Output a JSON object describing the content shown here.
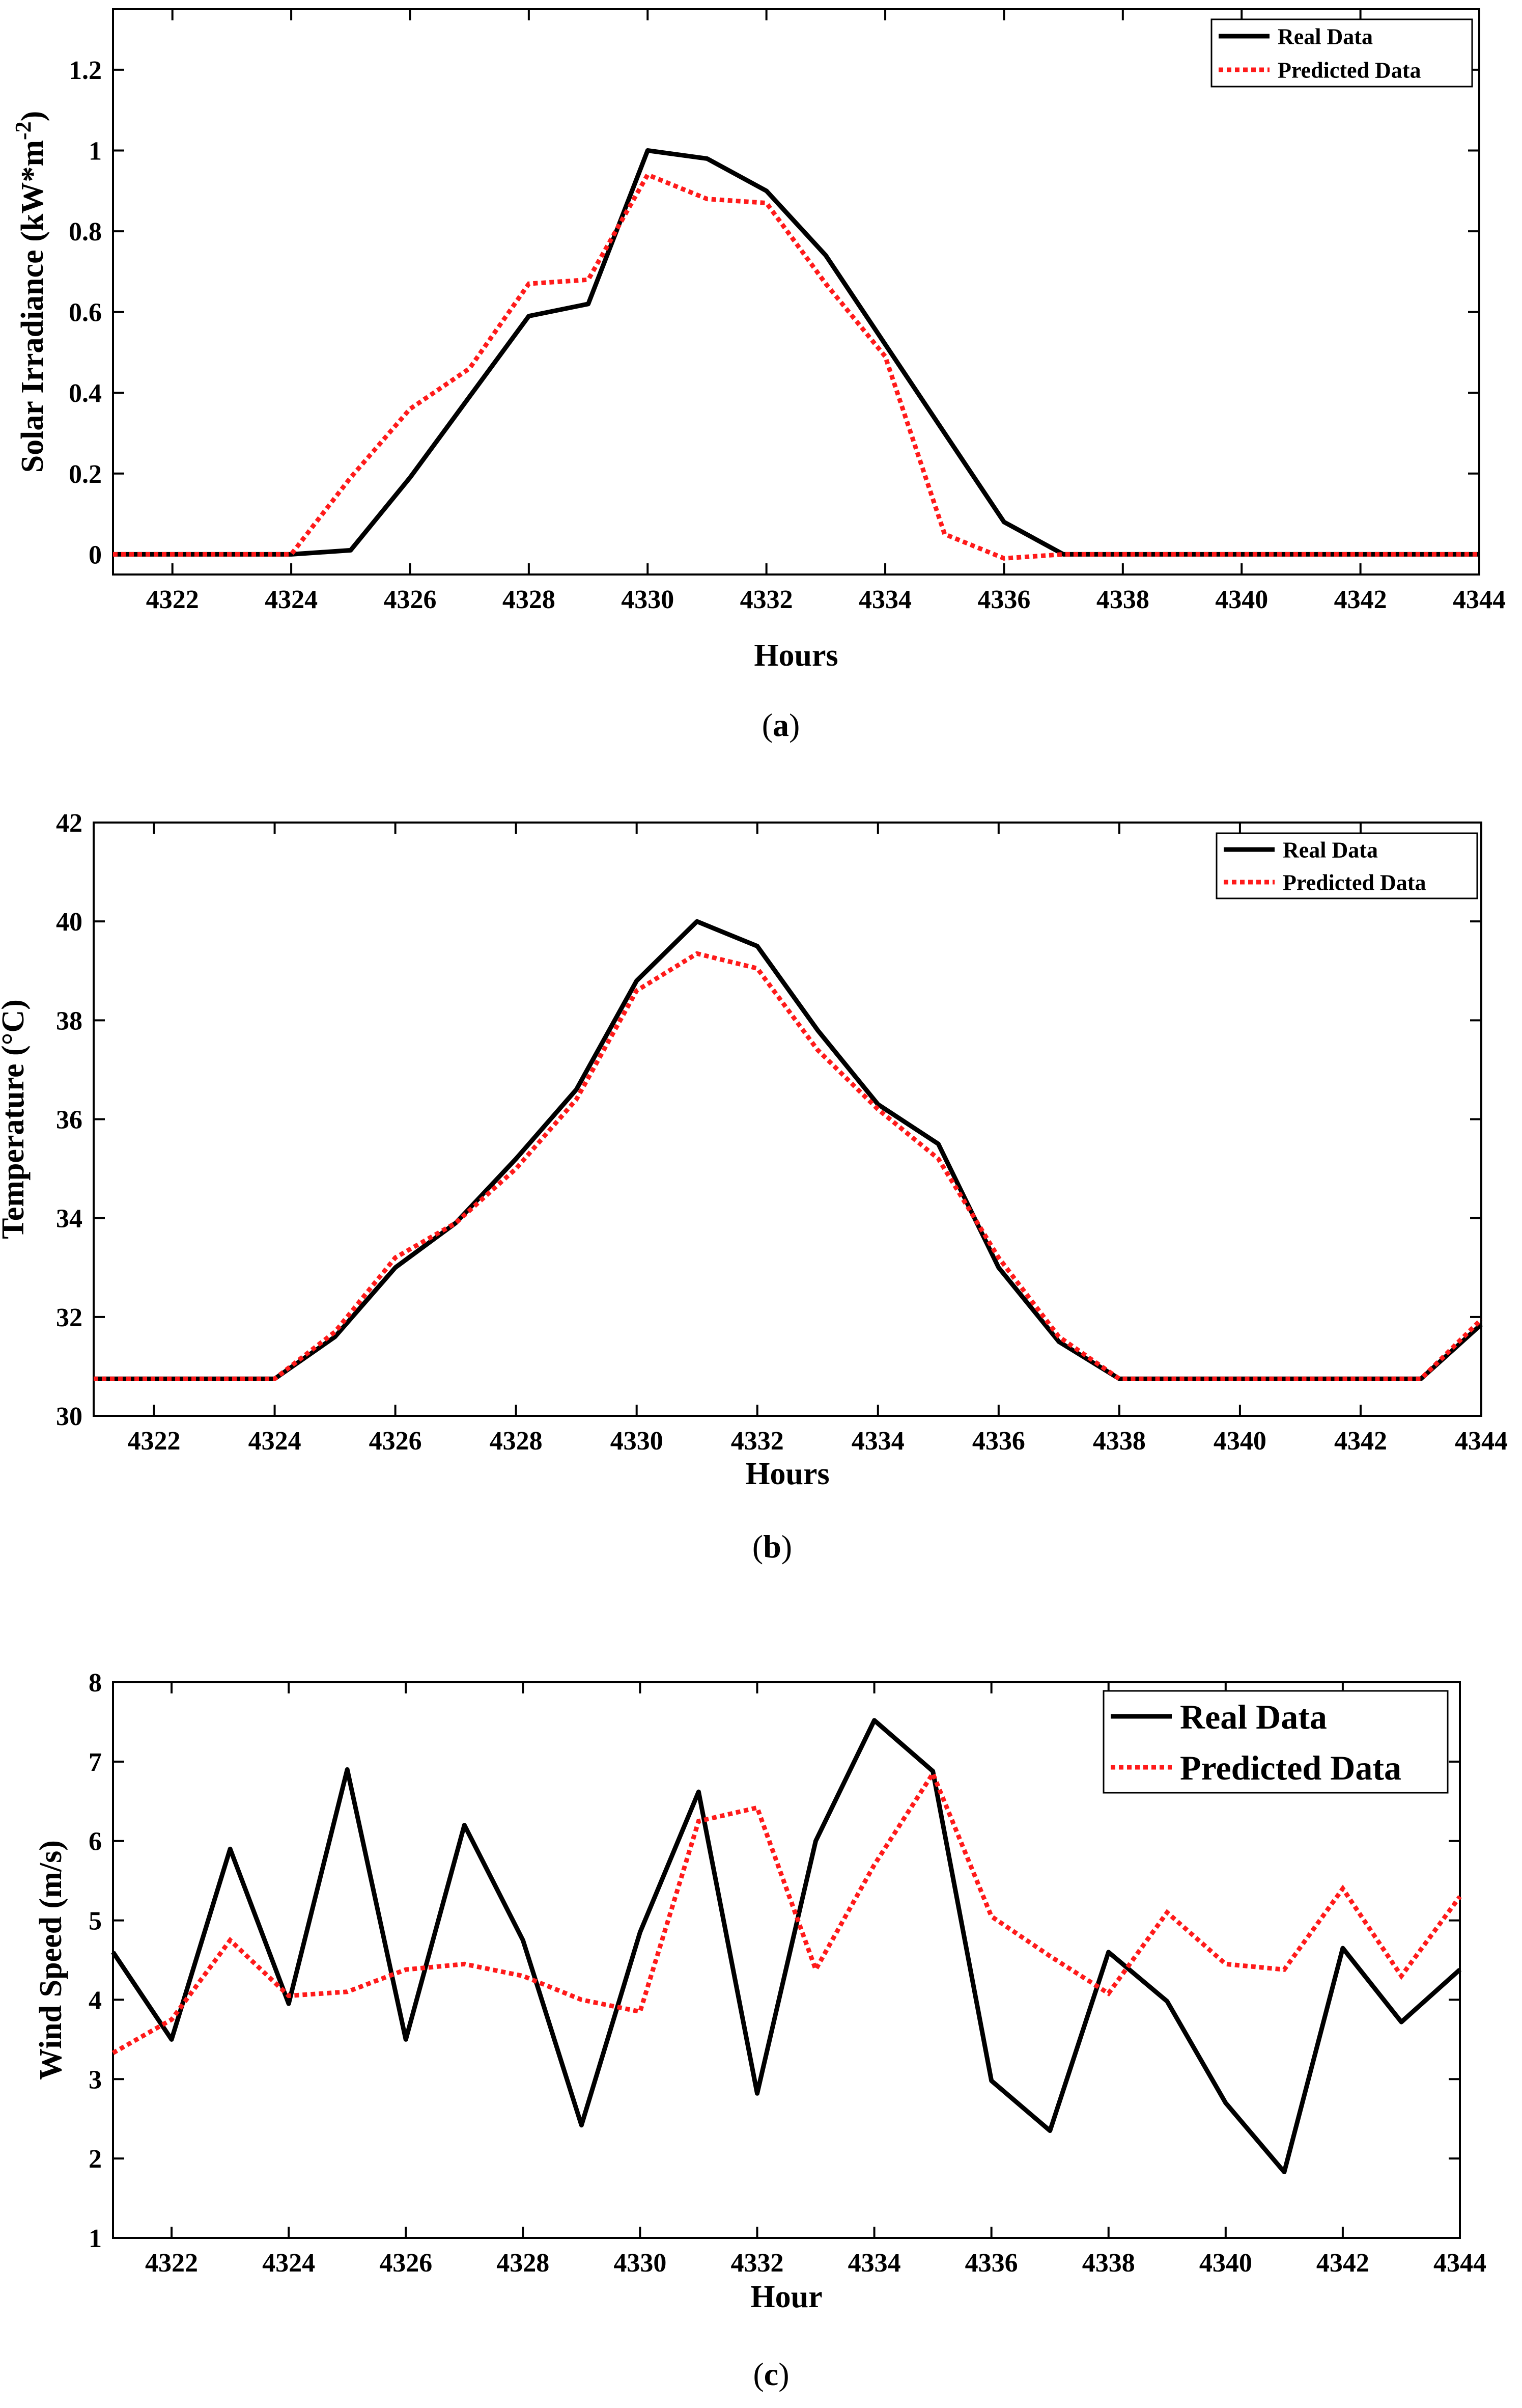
{
  "colors": {
    "real": "#000000",
    "predicted": "#ff1a1a",
    "axis": "#000000",
    "background": "#ffffff"
  },
  "chart_data": [
    {
      "panel": "a",
      "type": "line",
      "caption": "(a)",
      "caption_letter": "a",
      "xlabel": "Hours",
      "ylabel": "Solar Irradiance (kW*m",
      "ylabel_superscript": "-2",
      "ylabel_close": ")",
      "xlim": [
        4321,
        4344
      ],
      "ylim": [
        -0.05,
        1.35
      ],
      "xticks": [
        4322,
        4324,
        4326,
        4328,
        4330,
        4332,
        4334,
        4336,
        4338,
        4340,
        4342,
        4344
      ],
      "yticks": [
        0,
        0.2,
        0.4,
        0.6,
        0.8,
        1,
        1.2
      ],
      "ytick_labels": [
        "0",
        "0.2",
        "0.4",
        "0.6",
        "0.8",
        "1",
        "1.2"
      ],
      "legend_position": "top-right",
      "x": [
        4321,
        4322,
        4323,
        4324,
        4325,
        4326,
        4327,
        4328,
        4329,
        4330,
        4331,
        4332,
        4333,
        4334,
        4335,
        4336,
        4337,
        4338,
        4339,
        4340,
        4341,
        4342,
        4343,
        4344
      ],
      "series": [
        {
          "name": "Real Data",
          "style": "solid",
          "values": [
            0,
            0,
            0,
            0,
            0.01,
            0.19,
            0.39,
            0.59,
            0.62,
            1.0,
            0.98,
            0.9,
            0.74,
            0.52,
            0.3,
            0.08,
            0,
            0,
            0,
            0,
            0,
            0,
            0,
            0
          ]
        },
        {
          "name": "Predicted Data",
          "style": "dotted",
          "values": [
            0,
            0,
            0,
            0,
            0.19,
            0.36,
            0.46,
            0.67,
            0.68,
            0.94,
            0.88,
            0.87,
            0.67,
            0.49,
            0.05,
            -0.01,
            0,
            0,
            0,
            0,
            0,
            0,
            0,
            0
          ]
        }
      ]
    },
    {
      "panel": "b",
      "type": "line",
      "caption": "(b)",
      "caption_letter": "b",
      "xlabel": "Hours",
      "ylabel": "Temperature (°C)",
      "xlim": [
        4321,
        4344
      ],
      "ylim": [
        30,
        42
      ],
      "xticks": [
        4322,
        4324,
        4326,
        4328,
        4330,
        4332,
        4334,
        4336,
        4338,
        4340,
        4342,
        4344
      ],
      "yticks": [
        30,
        32,
        34,
        36,
        38,
        40,
        42
      ],
      "ytick_labels": [
        "30",
        "32",
        "34",
        "36",
        "38",
        "40",
        "42"
      ],
      "legend_position": "top-right",
      "x": [
        4321,
        4322,
        4323,
        4324,
        4325,
        4326,
        4327,
        4328,
        4329,
        4330,
        4331,
        4332,
        4333,
        4334,
        4335,
        4336,
        4337,
        4338,
        4339,
        4340,
        4341,
        4342,
        4343,
        4344
      ],
      "series": [
        {
          "name": "Real Data",
          "style": "solid",
          "values": [
            30.75,
            30.75,
            30.75,
            30.75,
            31.6,
            33.0,
            33.9,
            35.2,
            36.6,
            38.8,
            40.0,
            39.5,
            37.8,
            36.3,
            35.5,
            33.0,
            31.5,
            30.75,
            30.75,
            30.75,
            30.75,
            30.75,
            30.75,
            31.85
          ]
        },
        {
          "name": "Predicted Data",
          "style": "dotted",
          "values": [
            30.75,
            30.75,
            30.75,
            30.75,
            31.7,
            33.2,
            33.9,
            35.0,
            36.4,
            38.6,
            39.35,
            39.05,
            37.4,
            36.2,
            35.2,
            33.2,
            31.6,
            30.75,
            30.75,
            30.75,
            30.75,
            30.75,
            30.75,
            31.95
          ]
        }
      ]
    },
    {
      "panel": "c",
      "type": "line",
      "caption": "(c)",
      "caption_letter": "c",
      "xlabel": "Hour",
      "ylabel": "Wind Speed (m/s)",
      "xlim": [
        4321,
        4344
      ],
      "ylim": [
        1,
        8
      ],
      "xticks": [
        4322,
        4324,
        4326,
        4328,
        4330,
        4332,
        4334,
        4336,
        4338,
        4340,
        4342,
        4344
      ],
      "yticks": [
        1,
        2,
        3,
        4,
        5,
        6,
        7,
        8
      ],
      "ytick_labels": [
        "1",
        "2",
        "3",
        "4",
        "5",
        "6",
        "7",
        "8"
      ],
      "legend_position": "top-right",
      "x": [
        4321,
        4322,
        4323,
        4324,
        4325,
        4326,
        4327,
        4328,
        4329,
        4330,
        4331,
        4332,
        4333,
        4334,
        4335,
        4336,
        4337,
        4338,
        4339,
        4340,
        4341,
        4342,
        4343,
        4344
      ],
      "series": [
        {
          "name": "Real Data",
          "style": "solid",
          "values": [
            4.6,
            3.5,
            5.9,
            3.95,
            6.9,
            3.5,
            6.2,
            4.75,
            2.42,
            4.85,
            6.62,
            2.82,
            6.0,
            7.52,
            6.88,
            2.98,
            2.35,
            4.6,
            3.98,
            2.7,
            1.83,
            4.65,
            3.72,
            4.38
          ]
        },
        {
          "name": "Predicted Data",
          "style": "dotted",
          "values": [
            3.33,
            3.75,
            4.75,
            4.05,
            4.1,
            4.38,
            4.45,
            4.3,
            4.0,
            3.85,
            6.25,
            6.42,
            4.38,
            5.7,
            6.85,
            5.05,
            4.55,
            4.08,
            5.1,
            4.45,
            4.38,
            5.4,
            4.3,
            5.3
          ]
        }
      ]
    }
  ]
}
